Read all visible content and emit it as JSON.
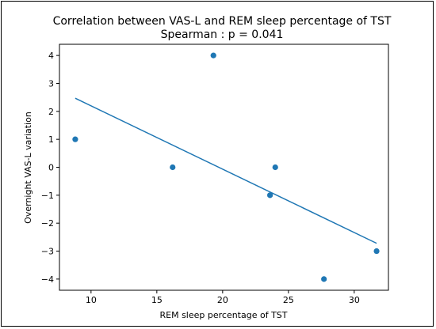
{
  "chart_data": {
    "type": "scatter",
    "title": "Correlation between VAS-L and REM sleep percentage of TST",
    "subtitle": "Spearman : p = 0.041",
    "xlabel": "REM sleep percentage of TST",
    "ylabel": "Overnight VAS-L variation",
    "xlim": [
      7.6,
      32.6
    ],
    "ylim": [
      -4.4,
      4.4
    ],
    "xticks": [
      10,
      15,
      20,
      25,
      30
    ],
    "yticks": [
      -4,
      -3,
      -2,
      -1,
      0,
      1,
      2,
      3,
      4
    ],
    "grid": false,
    "series": [
      {
        "points": [
          {
            "x": 8.8,
            "y": 1
          },
          {
            "x": 16.2,
            "y": 0
          },
          {
            "x": 19.3,
            "y": 4
          },
          {
            "x": 23.6,
            "y": -1
          },
          {
            "x": 24.0,
            "y": 0
          },
          {
            "x": 27.7,
            "y": -4
          },
          {
            "x": 31.7,
            "y": -3
          }
        ],
        "color": "#1f77b4"
      }
    ],
    "fit_line": {
      "x": [
        8.8,
        31.7
      ],
      "y": [
        2.47,
        -2.72
      ],
      "color": "#1f77b4"
    }
  }
}
